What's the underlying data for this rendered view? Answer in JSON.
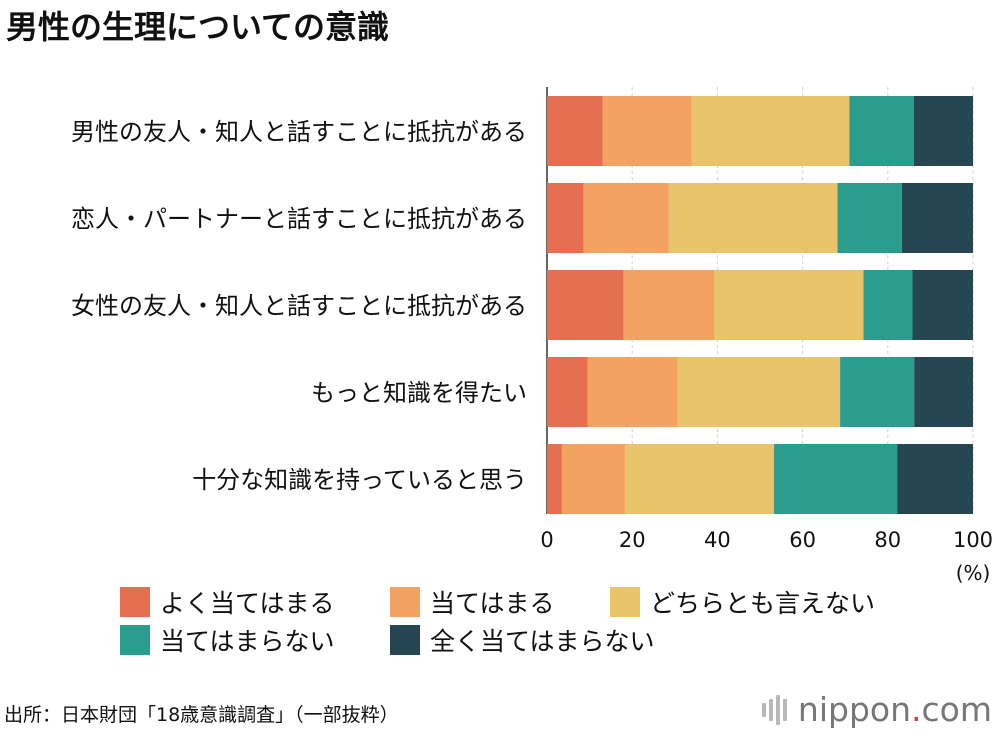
{
  "title": "男性の生理についての意識",
  "chart_data": {
    "type": "bar",
    "orientation": "horizontal",
    "stacked": true,
    "categories": [
      "男性の友人・知人と話すことに抵抗がある",
      "恋人・パートナーと話すことに抵抗がある",
      "女性の友人・知人と話すことに抵抗がある",
      "もっと知識を得たい",
      "十分な知識を持っていると思う"
    ],
    "series": [
      {
        "name": "よく当てはまる",
        "color": "#e76f51",
        "values": [
          13.1,
          8.6,
          18.0,
          9.5,
          3.5
        ]
      },
      {
        "name": "当てはまる",
        "color": "#f4a261",
        "values": [
          20.9,
          20.0,
          21.3,
          21.2,
          14.8
        ]
      },
      {
        "name": "どちらとも言えない",
        "color": "#e9c46a",
        "values": [
          37.0,
          39.6,
          35.0,
          38.1,
          35.0
        ]
      },
      {
        "name": "当てはまらない",
        "color": "#2a9d8f",
        "values": [
          15.1,
          15.1,
          11.5,
          17.4,
          28.9
        ]
      },
      {
        "name": "全く当てはまらない",
        "color": "#264653",
        "values": [
          13.9,
          16.7,
          14.2,
          13.8,
          17.8
        ]
      }
    ],
    "xlim": [
      0,
      100
    ],
    "xticks": [
      "0",
      "20",
      "40",
      "60",
      "80",
      "100"
    ],
    "xunit": "(%)",
    "grid": true,
    "legend": "bottom"
  },
  "source": "出所：日本財団「18歳意識調査」（一部抜粋）",
  "brand": {
    "name": "nippon",
    "dot": ".",
    "suffix": "com"
  }
}
